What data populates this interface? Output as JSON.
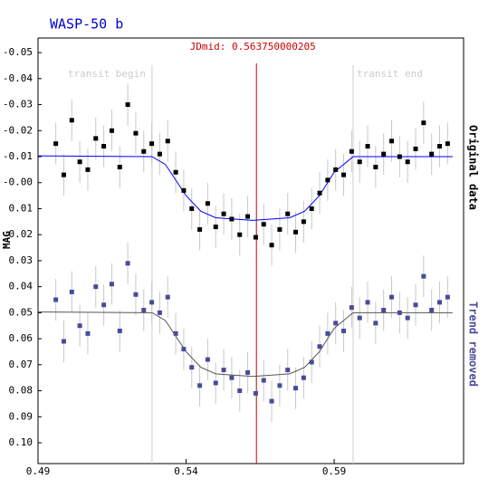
{
  "chart_data": {
    "type": "scatter",
    "title": "WASP-50 b",
    "y_label": "MAG",
    "xlim": [
      0.49,
      0.6337
    ],
    "xticks": [
      0.49,
      0.54,
      0.59
    ],
    "ylim": [
      0.108,
      -0.0556
    ],
    "yticks": [
      -0.05,
      -0.04,
      -0.03,
      -0.02,
      -0.01,
      {
        "value": 0,
        "label": "-0.00"
      },
      0.01,
      0.02,
      0.03,
      0.04,
      0.05,
      0.06,
      0.07,
      0.08,
      0.09,
      {
        "value": 0.1,
        "label": "0.10"
      }
    ],
    "grid": false,
    "vlines": [
      {
        "x": 0.5285,
        "label": "transit begin",
        "color": "#cccccc"
      },
      {
        "x": 0.56375,
        "label": "JDmid: 0.563750000205",
        "color": "#cc0000"
      },
      {
        "x": 0.5964,
        "label": "transit end",
        "color": "#cccccc"
      }
    ],
    "x": [
      0.496,
      0.4987,
      0.5014,
      0.5041,
      0.5068,
      0.5095,
      0.5122,
      0.5149,
      0.5176,
      0.5203,
      0.523,
      0.5257,
      0.5284,
      0.5311,
      0.5338,
      0.5365,
      0.5392,
      0.5419,
      0.5446,
      0.5473,
      0.55,
      0.5527,
      0.5554,
      0.5581,
      0.5608,
      0.5635,
      0.5662,
      0.5689,
      0.5716,
      0.5743,
      0.577,
      0.5797,
      0.5824,
      0.5851,
      0.5878,
      0.5905,
      0.5932,
      0.5959,
      0.5986,
      0.6013,
      0.604,
      0.6067,
      0.6094,
      0.6121,
      0.6148,
      0.6175,
      0.6202,
      0.6229,
      0.6256,
      0.6283
    ],
    "series": [
      {
        "name": "Original data",
        "color": "#000000",
        "error": 0.008,
        "values": [
          -0.015,
          -0.003,
          -0.024,
          -0.008,
          -0.005,
          -0.017,
          -0.014,
          -0.02,
          -0.006,
          -0.03,
          -0.019,
          -0.012,
          -0.015,
          -0.011,
          -0.016,
          -0.004,
          0.003,
          0.01,
          0.018,
          0.008,
          0.017,
          0.012,
          0.014,
          0.02,
          0.013,
          0.021,
          0.016,
          0.024,
          0.018,
          0.012,
          0.019,
          0.015,
          0.01,
          0.004,
          -0.001,
          -0.005,
          -0.003,
          -0.012,
          -0.008,
          -0.014,
          -0.006,
          -0.011,
          -0.016,
          -0.01,
          -0.008,
          -0.013,
          -0.023,
          -0.011,
          -0.014,
          -0.015
        ],
        "model": {
          "color": "#0000ff",
          "x": [
            0.49,
            0.5285,
            0.533,
            0.54,
            0.545,
            0.55,
            0.5625,
            0.575,
            0.58,
            0.585,
            0.59,
            0.5964,
            0.63
          ],
          "values": [
            -0.0103,
            -0.01,
            -0.007,
            0.005,
            0.011,
            0.0135,
            0.0145,
            0.0135,
            0.011,
            0.005,
            -0.004,
            -0.01,
            -0.01
          ]
        }
      },
      {
        "name": "Trend removed",
        "color": "#4a4a9a",
        "error": 0.008,
        "values": [
          0.045,
          0.061,
          0.042,
          0.055,
          0.058,
          0.04,
          0.047,
          0.039,
          0.057,
          0.031,
          0.043,
          0.049,
          0.046,
          0.05,
          0.044,
          0.058,
          0.064,
          0.071,
          0.078,
          0.068,
          0.077,
          0.072,
          0.075,
          0.08,
          0.073,
          0.081,
          0.076,
          0.084,
          0.078,
          0.072,
          0.079,
          0.075,
          0.069,
          0.063,
          0.058,
          0.054,
          0.057,
          0.048,
          0.052,
          0.046,
          0.054,
          0.049,
          0.044,
          0.05,
          0.052,
          0.047,
          0.036,
          0.049,
          0.046,
          0.044
        ],
        "model": {
          "color": "#555555",
          "x": [
            0.49,
            0.5285,
            0.533,
            0.54,
            0.545,
            0.55,
            0.5625,
            0.575,
            0.58,
            0.585,
            0.59,
            0.5964,
            0.63
          ],
          "values": [
            0.0497,
            0.05,
            0.053,
            0.065,
            0.071,
            0.0735,
            0.0745,
            0.0735,
            0.071,
            0.065,
            0.056,
            0.05,
            0.05
          ]
        }
      }
    ]
  }
}
